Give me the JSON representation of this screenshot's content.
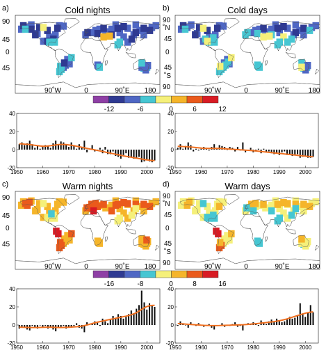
{
  "figure": {
    "panels": [
      {
        "letter": "a)",
        "title": "Cold nights"
      },
      {
        "letter": "b)",
        "title": "Cold days"
      },
      {
        "letter": "c)",
        "title": "Warm nights"
      },
      {
        "letter": "d)",
        "title": "Warm days"
      }
    ],
    "map_lon_ticks": [
      "90˚W",
      "0",
      "90˚E",
      "180"
    ],
    "map_lat_ticks_left": [
      "90",
      "45",
      "0",
      "45"
    ],
    "map_lat_ticks_mid": [
      "90",
      "˚N",
      "45",
      "0",
      "45",
      "˚S",
      "90"
    ],
    "colorbar_cold": {
      "labels": [
        "-12",
        "-6",
        "0",
        "6",
        "12"
      ]
    },
    "colorbar_warm": {
      "labels": [
        "-16",
        "-8",
        "0",
        "8",
        "16"
      ]
    },
    "colors": {
      "scale": [
        "#8e3fa5",
        "#2f3a92",
        "#4f67c4",
        "#46c6d2",
        "#f5f07a",
        "#f5b52a",
        "#ea5a1c",
        "#d81b24"
      ],
      "trend": "#f07020",
      "bars": "#111111"
    }
  },
  "chart_data": [
    {
      "panel": "a",
      "type": "bar",
      "title": "Cold nights",
      "x": [
        1951,
        1952,
        1953,
        1954,
        1955,
        1956,
        1957,
        1958,
        1959,
        1960,
        1961,
        1962,
        1963,
        1964,
        1965,
        1966,
        1967,
        1968,
        1969,
        1970,
        1971,
        1972,
        1973,
        1974,
        1975,
        1976,
        1977,
        1978,
        1979,
        1980,
        1981,
        1982,
        1983,
        1984,
        1985,
        1986,
        1987,
        1988,
        1989,
        1990,
        1991,
        1992,
        1993,
        1994,
        1995,
        1996,
        1997,
        1998,
        1999,
        2000,
        2001,
        2002,
        2003
      ],
      "values": [
        6,
        8,
        5,
        7,
        10,
        6,
        2,
        4,
        1,
        3,
        5,
        4,
        2,
        7,
        10,
        5,
        9,
        8,
        6,
        3,
        8,
        5,
        1,
        6,
        3,
        10,
        -3,
        1,
        5,
        -2,
        -1,
        2,
        -4,
        3,
        -5,
        -5,
        -2,
        -7,
        -8,
        -10,
        -6,
        -4,
        -9,
        -8,
        -10,
        -9,
        -8,
        -14,
        -13,
        -11,
        -13,
        -14,
        -12
      ],
      "trend": [
        6.5,
        6.3,
        6.1,
        5.9,
        5.6,
        5.2,
        4.8,
        4.4,
        4.0,
        3.8,
        3.8,
        4.0,
        4.3,
        4.7,
        5.2,
        5.5,
        5.7,
        5.7,
        5.5,
        5.2,
        4.8,
        4.3,
        3.8,
        3.2,
        2.6,
        2.0,
        1.4,
        0.8,
        0.3,
        -0.3,
        -0.9,
        -1.5,
        -2.1,
        -2.7,
        -3.3,
        -3.9,
        -4.5,
        -5.1,
        -5.7,
        -6.3,
        -6.9,
        -7.4,
        -7.9,
        -8.4,
        -8.9,
        -9.4,
        -9.9,
        -10.4,
        -10.9,
        -11.3,
        -11.7,
        -12.0,
        -12.2
      ],
      "xticks": [
        "1950",
        "1960",
        "1970",
        "1980",
        "1990",
        "2000"
      ],
      "ylim": [
        -20,
        40
      ],
      "yticks": [
        "40",
        "20",
        "0",
        "-20"
      ]
    },
    {
      "panel": "b",
      "type": "bar",
      "title": "Cold days",
      "x": [
        1951,
        1952,
        1953,
        1954,
        1955,
        1956,
        1957,
        1958,
        1959,
        1960,
        1961,
        1962,
        1963,
        1964,
        1965,
        1966,
        1967,
        1968,
        1969,
        1970,
        1971,
        1972,
        1973,
        1974,
        1975,
        1976,
        1977,
        1978,
        1979,
        1980,
        1981,
        1982,
        1983,
        1984,
        1985,
        1986,
        1987,
        1988,
        1989,
        1990,
        1991,
        1992,
        1993,
        1994,
        1995,
        1996,
        1997,
        1998,
        1999,
        2000,
        2001,
        2002,
        2003
      ],
      "values": [
        2,
        6,
        1,
        4,
        8,
        5,
        -2,
        1,
        -1,
        1,
        3,
        2,
        -1,
        3,
        6,
        2,
        5,
        4,
        3,
        0,
        3,
        2,
        -2,
        3,
        -1,
        8,
        -3,
        -1,
        2,
        -3,
        -2,
        1,
        -4,
        1,
        -3,
        -2,
        -4,
        -5,
        -4,
        -6,
        -3,
        -2,
        -6,
        -5,
        -7,
        -6,
        -5,
        -9,
        -8,
        -7,
        -9,
        -9,
        -8
      ],
      "trend": [
        3.6,
        3.5,
        3.4,
        3.3,
        3.1,
        2.9,
        2.6,
        2.3,
        2.0,
        1.7,
        1.5,
        1.4,
        1.4,
        1.4,
        1.4,
        1.4,
        1.3,
        1.2,
        1.0,
        0.8,
        0.6,
        0.4,
        0.2,
        0.0,
        -0.2,
        -0.4,
        -0.6,
        -0.8,
        -1.0,
        -1.2,
        -1.5,
        -1.8,
        -2.1,
        -2.4,
        -2.7,
        -3.0,
        -3.3,
        -3.6,
        -3.9,
        -4.2,
        -4.5,
        -4.8,
        -5.1,
        -5.4,
        -5.7,
        -6.0,
        -6.3,
        -6.6,
        -6.9,
        -7.2,
        -7.5,
        -7.7,
        -7.9
      ],
      "xticks": [
        "1950",
        "1960",
        "1970",
        "1980",
        "1990",
        "2000"
      ],
      "ylim": [
        -20,
        40
      ],
      "yticks": [
        "40",
        "20",
        "0",
        "-20"
      ]
    },
    {
      "panel": "c",
      "type": "bar",
      "title": "Warm nights",
      "x": [
        1951,
        1952,
        1953,
        1954,
        1955,
        1956,
        1957,
        1958,
        1959,
        1960,
        1961,
        1962,
        1963,
        1964,
        1965,
        1966,
        1967,
        1968,
        1969,
        1970,
        1971,
        1972,
        1973,
        1974,
        1975,
        1976,
        1977,
        1978,
        1979,
        1980,
        1981,
        1982,
        1983,
        1984,
        1985,
        1986,
        1987,
        1988,
        1989,
        1990,
        1991,
        1992,
        1993,
        1994,
        1995,
        1996,
        1997,
        1998,
        1999,
        2000,
        2001,
        2002,
        2003
      ],
      "values": [
        -4,
        -2,
        -3,
        -5,
        -6,
        -1,
        -3,
        -4,
        0,
        -2,
        -1,
        -4,
        -2,
        -5,
        -7,
        -3,
        -2,
        -1,
        -4,
        -2,
        -3,
        -1,
        2,
        -3,
        -4,
        -8,
        3,
        1,
        2,
        4,
        3,
        -1,
        7,
        4,
        2,
        6,
        10,
        8,
        12,
        10,
        7,
        9,
        12,
        16,
        13,
        18,
        22,
        38,
        25,
        17,
        24,
        22,
        20
      ],
      "trend": [
        -2.4,
        -2.5,
        -2.6,
        -2.7,
        -2.8,
        -2.8,
        -2.8,
        -2.8,
        -2.7,
        -2.6,
        -2.5,
        -2.5,
        -2.5,
        -2.6,
        -2.7,
        -2.8,
        -2.8,
        -2.7,
        -2.6,
        -2.5,
        -2.3,
        -2.1,
        -1.9,
        -1.6,
        -1.2,
        -0.7,
        0.0,
        0.8,
        1.6,
        2.4,
        3.1,
        3.8,
        4.4,
        5.0,
        5.6,
        6.2,
        6.8,
        7.4,
        8.0,
        8.6,
        9.2,
        9.8,
        10.5,
        11.3,
        12.3,
        13.6,
        15.3,
        17.2,
        19.0,
        20.4,
        21.2,
        21.6,
        21.8
      ],
      "xticks": [
        "1950",
        "1960",
        "1970",
        "1980",
        "1990",
        "2000"
      ],
      "ylim": [
        -20,
        40
      ],
      "yticks": [
        "40",
        "20",
        "0",
        "-20"
      ]
    },
    {
      "panel": "d",
      "type": "bar",
      "title": "Warm days",
      "x": [
        1951,
        1952,
        1953,
        1954,
        1955,
        1956,
        1957,
        1958,
        1959,
        1960,
        1961,
        1962,
        1963,
        1964,
        1965,
        1966,
        1967,
        1968,
        1969,
        1970,
        1971,
        1972,
        1973,
        1974,
        1975,
        1976,
        1977,
        1978,
        1979,
        1980,
        1981,
        1982,
        1983,
        1984,
        1985,
        1986,
        1987,
        1988,
        1989,
        1990,
        1991,
        1992,
        1993,
        1994,
        1995,
        1996,
        1997,
        1998,
        1999,
        2000,
        2001,
        2002,
        2003
      ],
      "values": [
        -1,
        4,
        2,
        0,
        -3,
        3,
        1,
        -1,
        2,
        0,
        -2,
        -1,
        1,
        -3,
        -5,
        -1,
        0,
        2,
        -2,
        0,
        -1,
        1,
        3,
        -2,
        -1,
        -6,
        1,
        2,
        1,
        3,
        2,
        -1,
        5,
        2,
        1,
        4,
        6,
        3,
        7,
        5,
        3,
        4,
        6,
        9,
        7,
        8,
        10,
        24,
        12,
        9,
        14,
        22,
        14
      ],
      "trend": [
        1.6,
        1.4,
        1.2,
        1.0,
        0.8,
        0.6,
        0.4,
        0.2,
        0.0,
        -0.2,
        -0.4,
        -0.5,
        -0.6,
        -0.7,
        -0.7,
        -0.7,
        -0.6,
        -0.5,
        -0.4,
        -0.3,
        -0.2,
        -0.1,
        0.0,
        0.1,
        0.2,
        0.3,
        0.5,
        0.7,
        0.9,
        1.2,
        1.5,
        1.8,
        2.1,
        2.4,
        2.7,
        3.0,
        3.4,
        3.8,
        4.2,
        4.7,
        5.3,
        6.0,
        6.8,
        7.7,
        8.6,
        9.5,
        10.4,
        11.3,
        12.2,
        13.0,
        13.7,
        14.2,
        14.5
      ],
      "xticks": [
        "1950",
        "1960",
        "1970",
        "1980",
        "1990",
        "2000"
      ],
      "ylim": [
        -20,
        40
      ],
      "yticks": [
        "40",
        "20",
        "0",
        "-20"
      ]
    }
  ]
}
